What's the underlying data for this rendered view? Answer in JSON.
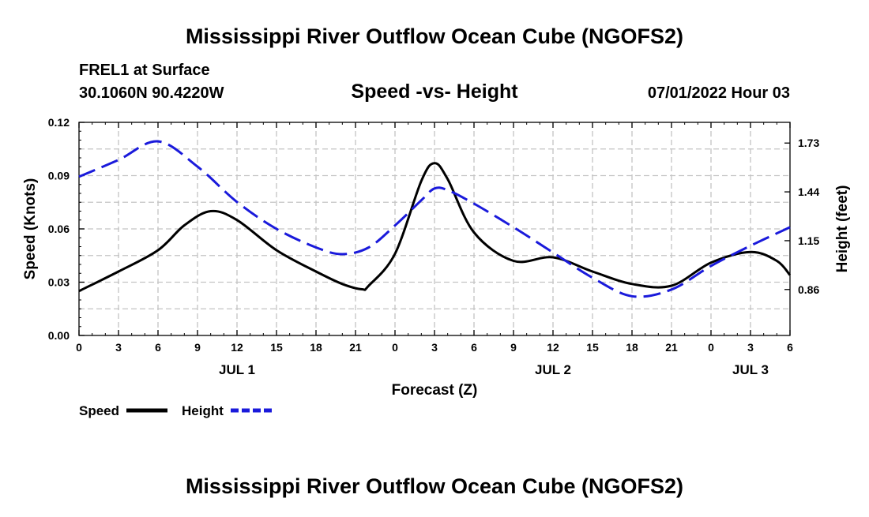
{
  "header": {
    "title": "Mississippi River Outflow Ocean Cube (NGOFS2)",
    "station": "FREL1 at Surface",
    "coords": "30.1060N  90.4220W",
    "datetime": "07/01/2022 Hour 03",
    "footer_title": "Mississippi River Outflow Ocean Cube (NGOFS2)"
  },
  "chart_data": {
    "type": "line",
    "title": "Speed -vs- Height",
    "xlabel": "Forecast (Z)",
    "ylabel": "Speed (Knots)",
    "y2label": "Height (feet)",
    "xlim": [
      0,
      54
    ],
    "ylim": [
      0,
      0.12
    ],
    "y2lim": [
      0.587,
      1.853
    ],
    "x_ticks": [
      0,
      3,
      6,
      9,
      12,
      15,
      18,
      21,
      24,
      27,
      30,
      33,
      36,
      39,
      42,
      45,
      48,
      51,
      54
    ],
    "x_tick_labels": [
      "0",
      "3",
      "6",
      "9",
      "12",
      "15",
      "18",
      "21",
      "0",
      "3",
      "6",
      "9",
      "12",
      "15",
      "18",
      "21",
      "0",
      "3",
      "6"
    ],
    "y_ticks": [
      0,
      0.03,
      0.06,
      0.09,
      0.12
    ],
    "y_tick_labels": [
      "0.00",
      "0.03",
      "0.06",
      "0.09",
      "0.12"
    ],
    "y2_ticks": [
      0.86,
      1.15,
      1.44,
      1.73
    ],
    "y2_tick_labels": [
      "0.86",
      "1.15",
      "1.44",
      "1.73"
    ],
    "day_labels": [
      {
        "x": 12,
        "label": "JUL 1"
      },
      {
        "x": 36,
        "label": "JUL 2"
      },
      {
        "x": 51,
        "label": "JUL 3"
      }
    ],
    "series": [
      {
        "name": "Speed",
        "axis": "left",
        "color": "#000000",
        "dash": false,
        "x": [
          0,
          3,
          6,
          8,
          10,
          12,
          15,
          18,
          20,
          21.5,
          22,
          24,
          26,
          27,
          28,
          30,
          33,
          36,
          39,
          42,
          45,
          48,
          51,
          53,
          54
        ],
        "values": [
          0.025,
          0.036,
          0.048,
          0.062,
          0.07,
          0.065,
          0.048,
          0.036,
          0.029,
          0.026,
          0.028,
          0.046,
          0.087,
          0.097,
          0.088,
          0.058,
          0.042,
          0.044,
          0.036,
          0.029,
          0.028,
          0.041,
          0.047,
          0.042,
          0.034
        ]
      },
      {
        "name": "Height",
        "axis": "right",
        "color": "#1a1adb",
        "dash": true,
        "x": [
          0,
          3,
          6,
          9,
          12,
          15,
          18,
          20,
          22,
          24,
          26,
          27,
          28,
          30,
          33,
          36,
          39,
          42,
          45,
          48,
          51,
          54
        ],
        "values": [
          1.53,
          1.63,
          1.74,
          1.59,
          1.38,
          1.22,
          1.11,
          1.07,
          1.11,
          1.24,
          1.39,
          1.46,
          1.45,
          1.37,
          1.23,
          1.08,
          0.93,
          0.82,
          0.86,
          1.0,
          1.12,
          1.23
        ]
      }
    ],
    "legend": [
      {
        "label": "Speed",
        "color": "#000000",
        "dash": false
      },
      {
        "label": "Height",
        "color": "#1a1adb",
        "dash": true
      }
    ],
    "legend_position": "bottom-left",
    "grid": true
  }
}
